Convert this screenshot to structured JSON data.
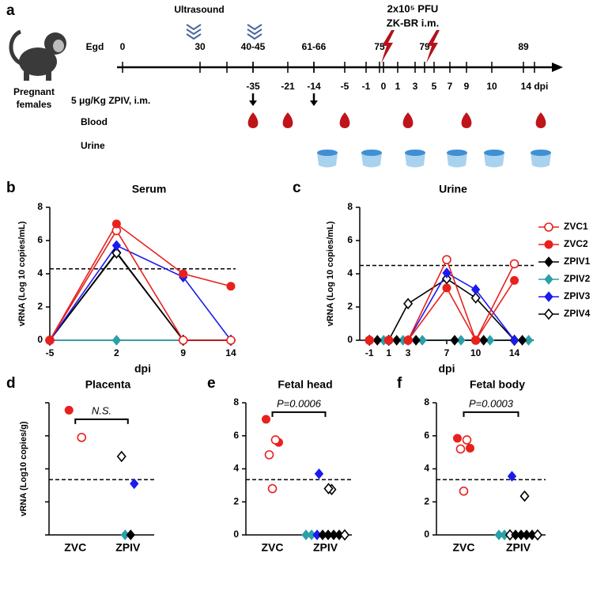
{
  "timeline": {
    "label": "a",
    "ultrasound": "Ultrasound",
    "infection": [
      "2x10⁵ PFU",
      "ZK-BR i.m."
    ],
    "egd_label": "Egd",
    "egd_ticks": [
      "0",
      "30",
      "40-45",
      "61-66",
      "75",
      "79",
      "89"
    ],
    "subjects": [
      "Pregnant",
      "females"
    ],
    "vaccine": "5 μg/Kg ZPIV, i.m.",
    "dpi_ticks": [
      "-35",
      "-21",
      "-14",
      "-5",
      "-1",
      "0",
      "1",
      "3",
      "5",
      "7",
      "9",
      "10",
      "14 dpi"
    ],
    "blood": "Blood",
    "urine": "Urine"
  },
  "chart_data": [
    {
      "type": "line",
      "label": "b",
      "title": "Serum",
      "xlabel": "dpi",
      "ylabel": "vRNA (Log 10 copies/mL)",
      "x": [
        -5,
        2,
        9,
        14
      ],
      "xlim": [
        -5,
        14.5
      ],
      "xticks": [
        -5,
        2,
        9,
        14
      ],
      "ylim": [
        0,
        8
      ],
      "yticks": [
        0,
        2,
        4,
        6,
        8
      ],
      "threshold": 4.3,
      "series": [
        {
          "name": "ZVC1",
          "color": "#e8211d",
          "marker": "circle",
          "open": true,
          "values": [
            0,
            6.6,
            0,
            0
          ]
        },
        {
          "name": "ZVC2",
          "color": "#e8211d",
          "marker": "circle",
          "open": false,
          "values": [
            0,
            7.0,
            4.0,
            3.25
          ]
        },
        {
          "name": "ZPIV1",
          "color": "#000000",
          "marker": "diamond",
          "open": false,
          "values": [
            0,
            5.3,
            0,
            0
          ]
        },
        {
          "name": "ZPIV2",
          "color": "#2aa0a8",
          "marker": "diamond",
          "open": false,
          "values": [
            0,
            0,
            0,
            0
          ]
        },
        {
          "name": "ZPIV3",
          "color": "#1b1bf0",
          "marker": "diamond",
          "open": false,
          "values": [
            0,
            5.7,
            3.8,
            0
          ]
        },
        {
          "name": "ZPIV4",
          "color": "#000000",
          "marker": "diamond",
          "open": true,
          "values": [
            0,
            5.25,
            0,
            0
          ]
        }
      ]
    },
    {
      "type": "line",
      "label": "c",
      "title": "Urine",
      "xlabel": "dpi",
      "ylabel": "vRNA (Log 10 copies/mL)",
      "x": [
        -1,
        1,
        3,
        7,
        10,
        14
      ],
      "xlim": [
        -2,
        16
      ],
      "xticks": [
        -1,
        1,
        3,
        7,
        10,
        14
      ],
      "ylim": [
        0,
        8
      ],
      "yticks": [
        0,
        2,
        4,
        6,
        8
      ],
      "threshold": 4.5,
      "legend": "right",
      "series": [
        {
          "name": "ZVC1",
          "color": "#e8211d",
          "marker": "circle",
          "open": true,
          "values": [
            0,
            0,
            0,
            4.85,
            0,
            4.6
          ]
        },
        {
          "name": "ZVC2",
          "color": "#e8211d",
          "marker": "circle",
          "open": false,
          "values": [
            0,
            0,
            0,
            3.15,
            0,
            3.6
          ]
        },
        {
          "name": "ZPIV1",
          "color": "#000000",
          "marker": "diamond",
          "open": false,
          "values": [
            0,
            0,
            0,
            0,
            0,
            0
          ]
        },
        {
          "name": "ZPIV2",
          "color": "#2aa0a8",
          "marker": "diamond",
          "open": false,
          "values": [
            0,
            0,
            0,
            0,
            0,
            0
          ]
        },
        {
          "name": "ZPIV3",
          "color": "#1b1bf0",
          "marker": "diamond",
          "open": false,
          "values": [
            0,
            0,
            0,
            4.05,
            3.05,
            0
          ]
        },
        {
          "name": "ZPIV4",
          "color": "#000000",
          "marker": "diamond",
          "open": true,
          "values": [
            0,
            0,
            2.2,
            3.7,
            2.55,
            0
          ]
        }
      ]
    },
    {
      "type": "strip",
      "label": "d",
      "title": "Placenta",
      "ylabel": "vRNA (Log10 copies/g)",
      "categories": [
        "ZVC",
        "ZPIV"
      ],
      "ylim": [
        0,
        8
      ],
      "yticks": [
        0,
        2,
        4,
        6,
        8
      ],
      "tick_labels": false,
      "threshold": 3.35,
      "bracket": {
        "from": 0,
        "to": 1,
        "y": 7.0,
        "text": "N.S."
      },
      "points": [
        {
          "x": 0,
          "y": 7.55,
          "marker": "circle",
          "color": "#e8211d",
          "open": false
        },
        {
          "x": 0,
          "y": 5.9,
          "marker": "circle",
          "color": "#e8211d",
          "open": true
        },
        {
          "x": 1,
          "y": 4.75,
          "marker": "diamond",
          "color": "#000000",
          "open": true
        },
        {
          "x": 1,
          "y": 3.1,
          "marker": "diamond",
          "color": "#1b1bf0",
          "open": false
        },
        {
          "x": 1,
          "y": 0,
          "marker": "diamond",
          "color": "#2aa0a8",
          "open": false
        },
        {
          "x": 1,
          "y": 0,
          "marker": "diamond",
          "color": "#000000",
          "open": false
        }
      ]
    },
    {
      "type": "strip",
      "label": "e",
      "title": "Fetal head",
      "categories": [
        "ZVC",
        "ZPIV"
      ],
      "ylim": [
        0,
        8
      ],
      "yticks": [
        0,
        2,
        4,
        6,
        8
      ],
      "threshold": 3.35,
      "bracket": {
        "from": 0,
        "to": 1,
        "y": 7.43,
        "text": "P=0.0006"
      },
      "points": [
        {
          "x": 0,
          "y": 7.0,
          "marker": "circle",
          "color": "#e8211d",
          "open": false
        },
        {
          "x": 0,
          "y": 5.6,
          "marker": "circle",
          "color": "#e8211d",
          "open": false
        },
        {
          "x": 0,
          "y": 5.75,
          "marker": "circle",
          "color": "#e8211d",
          "open": true
        },
        {
          "x": 0,
          "y": 4.85,
          "marker": "circle",
          "color": "#e8211d",
          "open": true
        },
        {
          "x": 0,
          "y": 2.8,
          "marker": "circle",
          "color": "#e8211d",
          "open": true
        },
        {
          "x": 1,
          "y": 3.7,
          "marker": "diamond",
          "color": "#1b1bf0",
          "open": false
        },
        {
          "x": 1,
          "y": 2.75,
          "marker": "diamond",
          "color": "#000000",
          "open": true
        },
        {
          "x": 1,
          "y": 2.8,
          "marker": "diamond",
          "color": "#000000",
          "open": true
        },
        {
          "x": 1,
          "y": 0,
          "marker": "diamond",
          "color": "#2aa0a8",
          "open": false
        },
        {
          "x": 1,
          "y": 0,
          "marker": "diamond",
          "color": "#2aa0a8",
          "open": false
        },
        {
          "x": 1,
          "y": 0,
          "marker": "diamond",
          "color": "#1b1bf0",
          "open": false
        },
        {
          "x": 1,
          "y": 0,
          "marker": "diamond",
          "color": "#000000",
          "open": false
        },
        {
          "x": 1,
          "y": 0,
          "marker": "diamond",
          "color": "#000000",
          "open": false
        },
        {
          "x": 1,
          "y": 0,
          "marker": "diamond",
          "color": "#000000",
          "open": false
        },
        {
          "x": 1,
          "y": 0,
          "marker": "diamond",
          "color": "#000000",
          "open": false
        },
        {
          "x": 1,
          "y": 0,
          "marker": "diamond",
          "color": "#000000",
          "open": true
        }
      ]
    },
    {
      "type": "strip",
      "label": "f",
      "title": "Fetal body",
      "categories": [
        "ZVC",
        "ZPIV"
      ],
      "ylim": [
        0,
        8
      ],
      "yticks": [
        0,
        2,
        4,
        6,
        8
      ],
      "threshold": 3.35,
      "bracket": {
        "from": 0,
        "to": 1,
        "y": 7.43,
        "text": "P=0.0003"
      },
      "points": [
        {
          "x": 0,
          "y": 5.85,
          "marker": "circle",
          "color": "#e8211d",
          "open": false
        },
        {
          "x": 0,
          "y": 5.25,
          "marker": "circle",
          "color": "#e8211d",
          "open": false
        },
        {
          "x": 0,
          "y": 5.75,
          "marker": "circle",
          "color": "#e8211d",
          "open": true
        },
        {
          "x": 0,
          "y": 5.2,
          "marker": "circle",
          "color": "#e8211d",
          "open": true
        },
        {
          "x": 0,
          "y": 2.65,
          "marker": "circle",
          "color": "#e8211d",
          "open": true
        },
        {
          "x": 1,
          "y": 3.55,
          "marker": "diamond",
          "color": "#1b1bf0",
          "open": false
        },
        {
          "x": 1,
          "y": 2.35,
          "marker": "diamond",
          "color": "#000000",
          "open": true
        },
        {
          "x": 1,
          "y": 0,
          "marker": "diamond",
          "color": "#2aa0a8",
          "open": false
        },
        {
          "x": 1,
          "y": 0,
          "marker": "diamond",
          "color": "#2aa0a8",
          "open": false
        },
        {
          "x": 1,
          "y": 0,
          "marker": "diamond",
          "color": "#000000",
          "open": true
        },
        {
          "x": 1,
          "y": 0,
          "marker": "diamond",
          "color": "#000000",
          "open": false
        },
        {
          "x": 1,
          "y": 0,
          "marker": "diamond",
          "color": "#000000",
          "open": false
        },
        {
          "x": 1,
          "y": 0,
          "marker": "diamond",
          "color": "#000000",
          "open": false
        },
        {
          "x": 1,
          "y": 0,
          "marker": "diamond",
          "color": "#000000",
          "open": false
        },
        {
          "x": 1,
          "y": 0,
          "marker": "diamond",
          "color": "#000000",
          "open": true
        }
      ]
    }
  ]
}
